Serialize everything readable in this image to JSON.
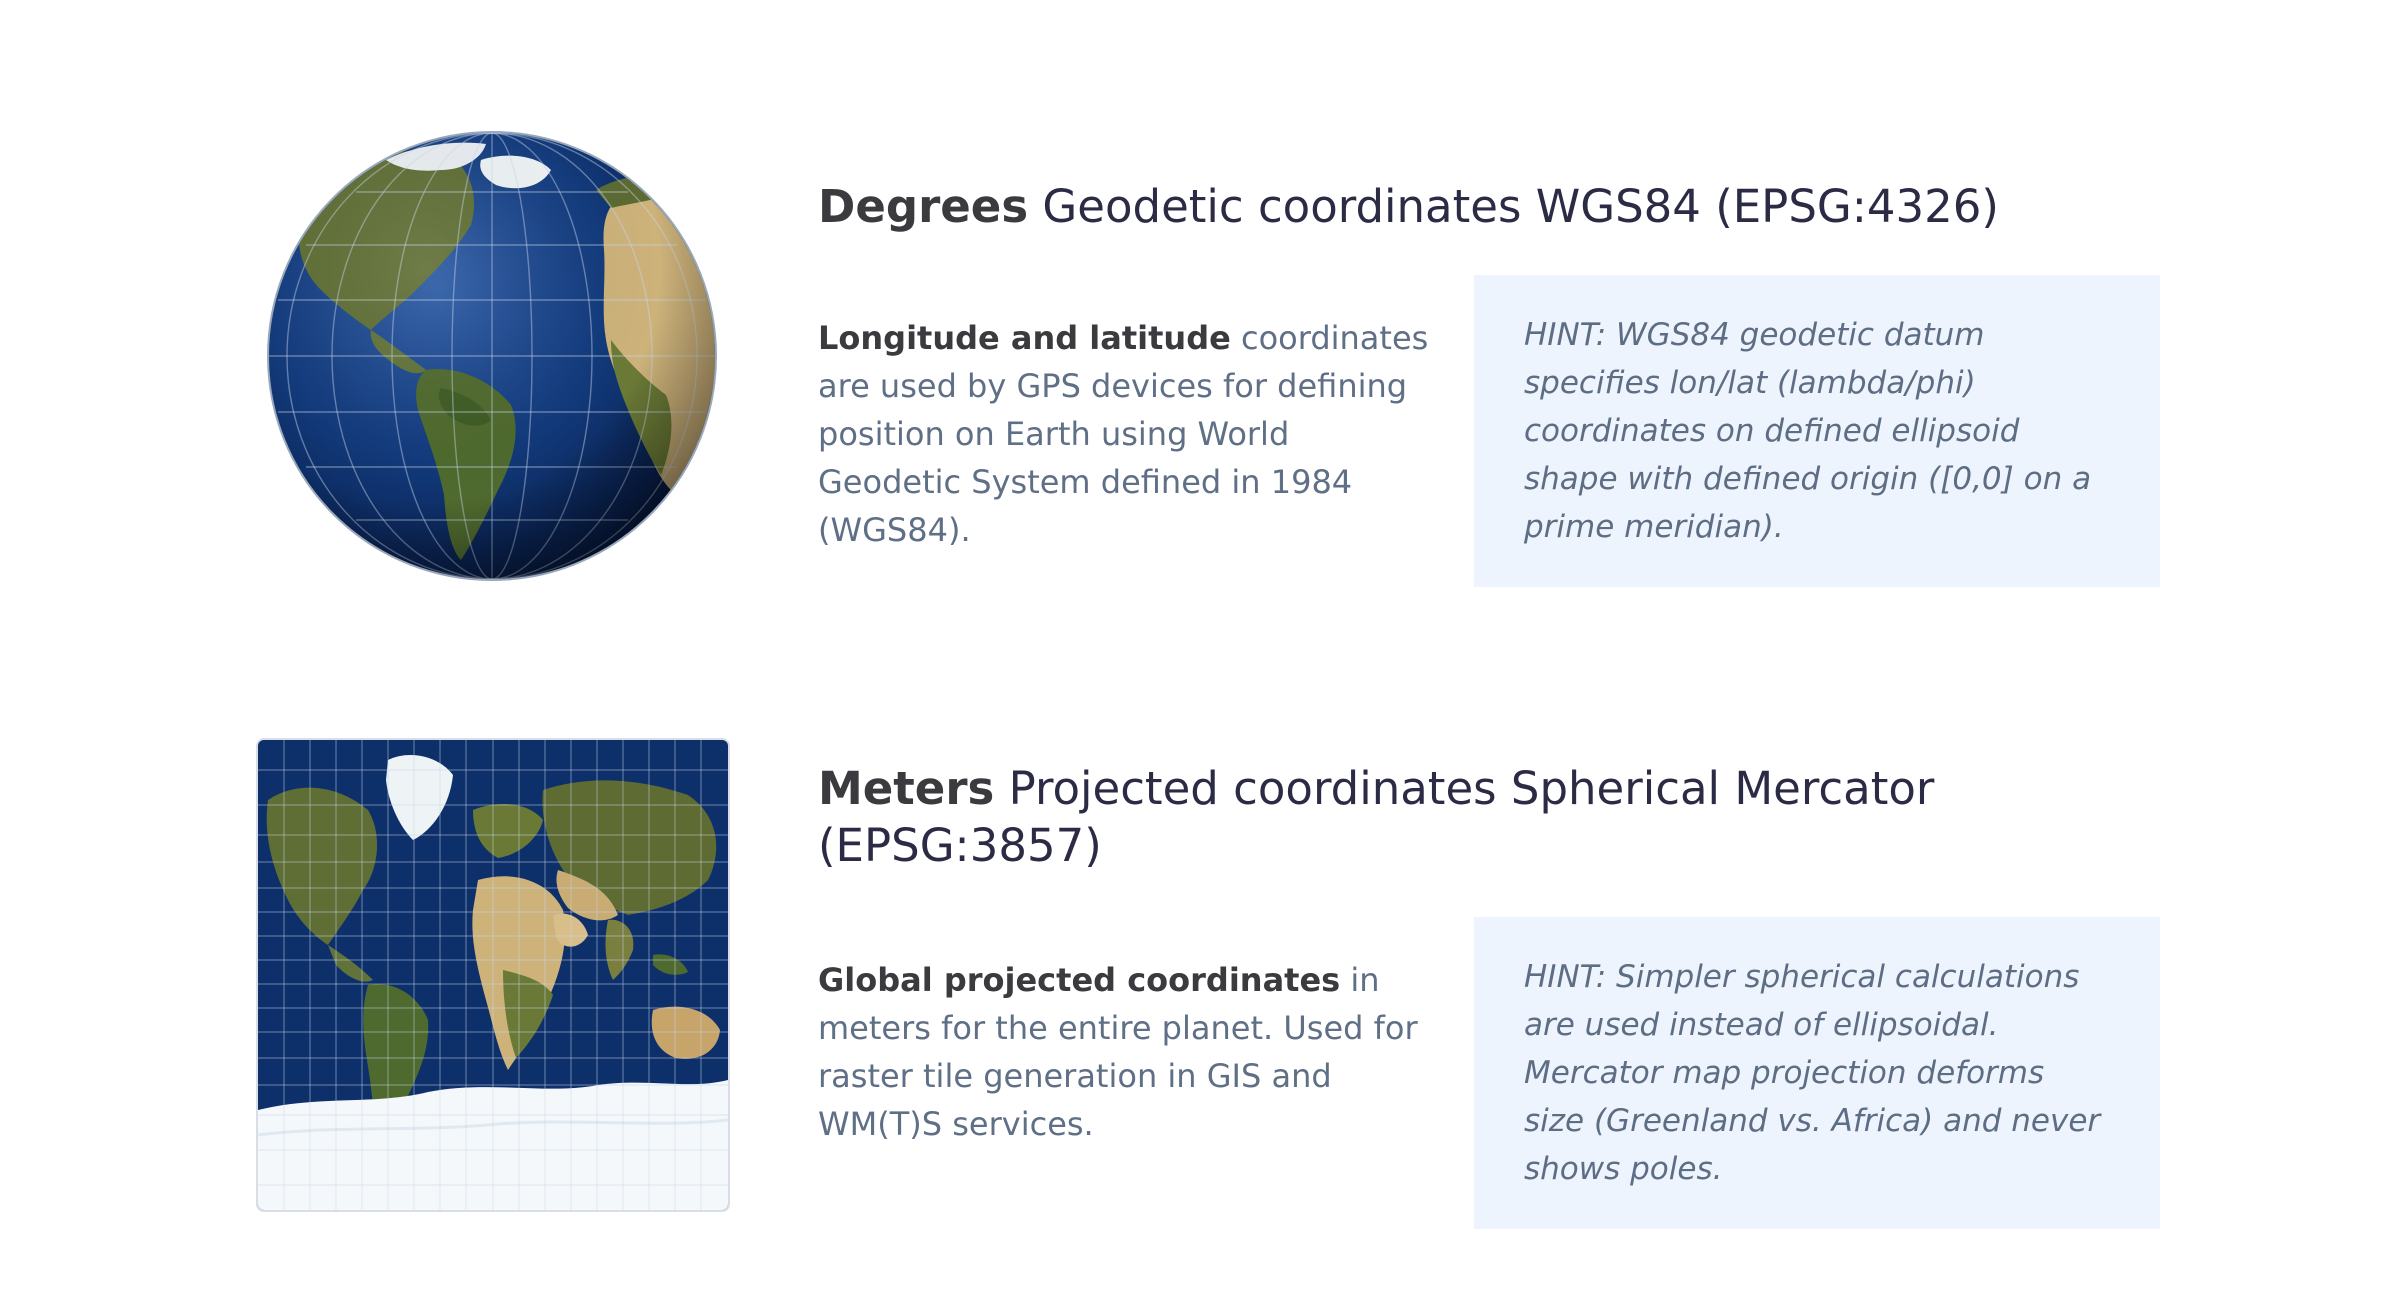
{
  "sections": [
    {
      "heading_bold": "Degrees",
      "heading_rest": " Geodetic coordinates WGS84 (EPSG:4326)",
      "desc_bold": "Longitude and latitude",
      "desc_rest": " coordinates are used by GPS devices for defining position on Earth using World Geodetic System defined in 1984 (WGS84).",
      "hint": "HINT: WGS84 geodetic datum specifies lon/lat (lambda/phi) coordinates on defined ellipsoid shape with defined origin ([0,0] on a prime meridian).",
      "visual_icon": "globe-icon"
    },
    {
      "heading_bold": "Meters",
      "heading_rest": " Projected coordinates Spherical Mercator",
      "heading_line2": "(EPSG:3857)",
      "desc_bold": "Global projected coordinates",
      "desc_rest": " in meters for the entire planet. Used for raster tile generation in GIS and WM(T)S services.",
      "hint": "HINT: Simpler spherical calculations are used instead of ellipsoidal. Mercator map projection deforms size (Greenland vs. Africa) and never shows poles.",
      "visual_icon": "mercator-map-icon"
    }
  ],
  "colors": {
    "heading": "#2b2b45",
    "body_text": "#5f6f86",
    "hint_background": "#eef4fe",
    "hint_text": "#5d6d83",
    "ocean": "#0c2a63",
    "land": "#6f7b3c",
    "desert": "#d8c08a",
    "ice": "#f4f8fb"
  }
}
